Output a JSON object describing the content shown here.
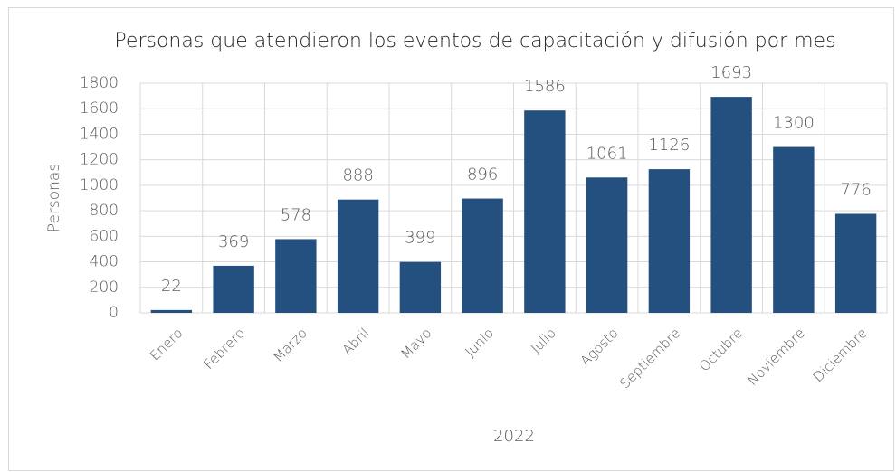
{
  "chart_data": {
    "type": "bar",
    "title": "Personas que atendieron los eventos de capacitación y difusión por mes",
    "x_label": "2022",
    "y_label": "Personas",
    "categories": [
      "Enero",
      "Febrero",
      "Marzo",
      "Abril",
      "Mayo",
      "Junio",
      "Julio",
      "Agosto",
      "Septiembre",
      "Octubre",
      "Noviembre",
      "Diciembre"
    ],
    "values": [
      22,
      369,
      578,
      888,
      399,
      896,
      1586,
      1061,
      1126,
      1693,
      1300,
      776
    ],
    "color": "#24507f",
    "ylim": [
      0,
      1800
    ],
    "yticks": [
      0,
      200,
      400,
      600,
      800,
      1000,
      1200,
      1400,
      1600,
      1800
    ],
    "grid": true,
    "data_labels": true
  }
}
